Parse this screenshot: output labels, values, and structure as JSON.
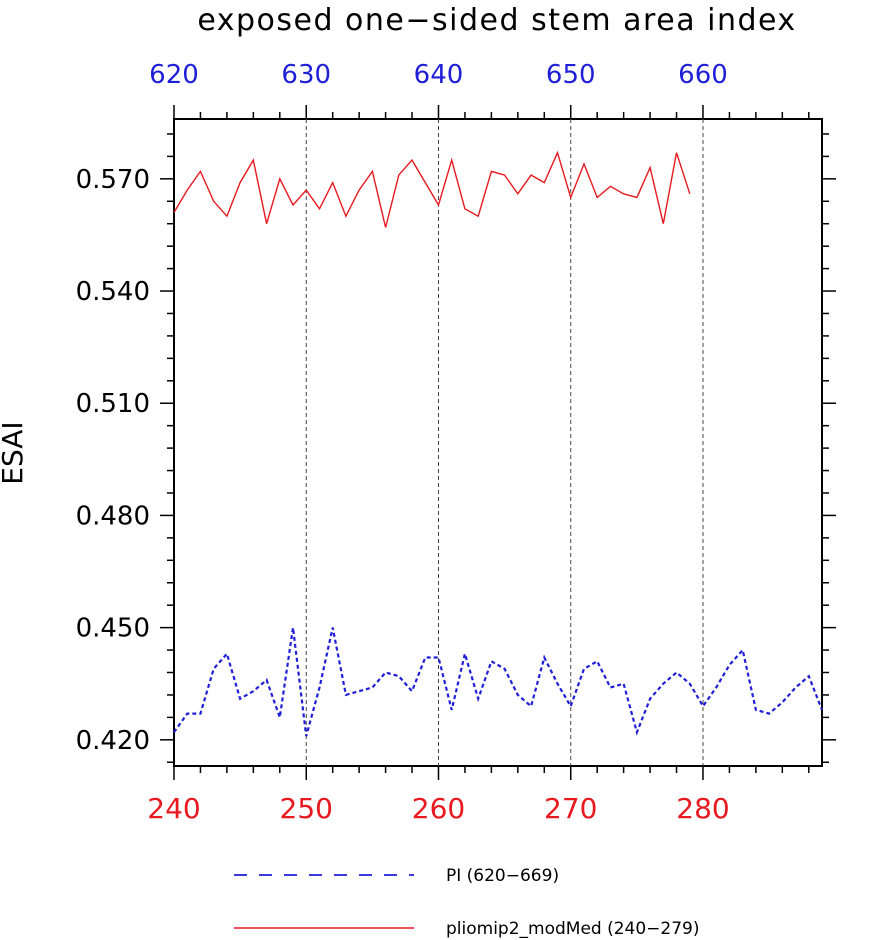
{
  "chart_data": {
    "type": "line",
    "title": "exposed one−sided stem area index",
    "ylabel": "ESAI",
    "xlabel": "",
    "ylim": [
      0.413,
      0.586
    ],
    "yticks": [
      0.42,
      0.45,
      0.48,
      0.51,
      0.54,
      0.57
    ],
    "ytick_labels": [
      "0.420",
      "0.450",
      "0.480",
      "0.510",
      "0.540",
      "0.570"
    ],
    "x_bottom": {
      "range": [
        240,
        289
      ],
      "ticks": [
        240,
        250,
        260,
        270,
        280
      ],
      "tick_labels": [
        "240",
        "250",
        "260",
        "270",
        "280"
      ],
      "color": "#e8191f"
    },
    "x_top": {
      "range": [
        620,
        669
      ],
      "ticks": [
        620,
        630,
        640,
        650,
        660
      ],
      "tick_labels": [
        "620",
        "630",
        "640",
        "650",
        "660"
      ],
      "color": "#1f1fd8"
    },
    "vertical_gridlines_at": [
      250,
      260,
      270,
      280
    ],
    "legend_position": "bottom",
    "series": [
      {
        "name": "PI (620−669)",
        "axis": "top",
        "color": "#1f1fd8",
        "style": "dashed",
        "x": [
          620,
          621,
          622,
          623,
          624,
          625,
          626,
          627,
          628,
          629,
          630,
          631,
          632,
          633,
          634,
          635,
          636,
          637,
          638,
          639,
          640,
          641,
          642,
          643,
          644,
          645,
          646,
          647,
          648,
          649,
          650,
          651,
          652,
          653,
          654,
          655,
          656,
          657,
          658,
          659,
          660,
          661,
          662,
          663,
          664,
          665,
          666,
          667,
          668,
          669
        ],
        "y": [
          0.422,
          0.427,
          0.427,
          0.439,
          0.443,
          0.431,
          0.433,
          0.436,
          0.426,
          0.45,
          0.421,
          0.434,
          0.45,
          0.432,
          0.433,
          0.434,
          0.438,
          0.437,
          0.433,
          0.442,
          0.442,
          0.428,
          0.443,
          0.431,
          0.441,
          0.439,
          0.432,
          0.429,
          0.442,
          0.435,
          0.429,
          0.439,
          0.441,
          0.434,
          0.435,
          0.422,
          0.431,
          0.435,
          0.438,
          0.435,
          0.429,
          0.434,
          0.44,
          0.444,
          0.428,
          0.427,
          0.43,
          0.434,
          0.437,
          0.428
        ]
      },
      {
        "name": "pliomip2_modMed (240−279)",
        "axis": "bottom",
        "color": "#e8191f",
        "style": "solid",
        "x": [
          240,
          241,
          242,
          243,
          244,
          245,
          246,
          247,
          248,
          249,
          250,
          251,
          252,
          253,
          254,
          255,
          256,
          257,
          258,
          259,
          260,
          261,
          262,
          263,
          264,
          265,
          266,
          267,
          268,
          269,
          270,
          271,
          272,
          273,
          274,
          275,
          276,
          277,
          278,
          279
        ],
        "y": [
          0.561,
          0.567,
          0.572,
          0.564,
          0.56,
          0.569,
          0.575,
          0.558,
          0.57,
          0.563,
          0.567,
          0.562,
          0.569,
          0.56,
          0.567,
          0.572,
          0.557,
          0.571,
          0.575,
          0.569,
          0.563,
          0.575,
          0.562,
          0.56,
          0.572,
          0.571,
          0.566,
          0.571,
          0.569,
          0.577,
          0.565,
          0.574,
          0.565,
          0.568,
          0.566,
          0.565,
          0.573,
          0.558,
          0.577,
          0.566
        ]
      }
    ]
  }
}
